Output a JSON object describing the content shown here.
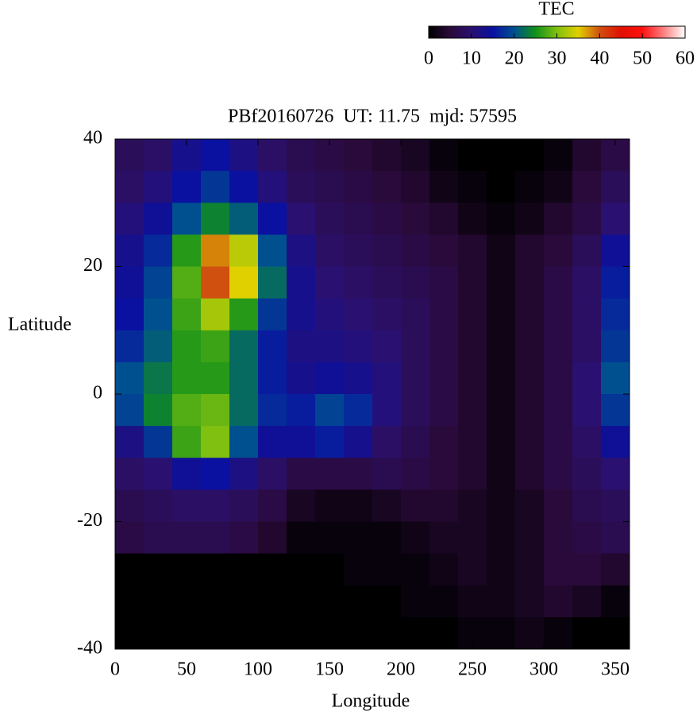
{
  "chart_data": {
    "type": "heatmap",
    "title": "PBf20160726  UT: 11.75  mjd: 57595",
    "xlabel": "Longitude",
    "ylabel": "Latitude",
    "colorbar_label": "TEC",
    "x": [
      10,
      30,
      50,
      70,
      90,
      110,
      130,
      150,
      170,
      190,
      210,
      230,
      250,
      270,
      290,
      310,
      330,
      350
    ],
    "y": [
      37.5,
      32.5,
      27.5,
      22.5,
      17.5,
      12.5,
      7.5,
      2.5,
      -2.5,
      -7.5,
      -12.5,
      -17.5,
      -22.5,
      -27.5,
      -32.5,
      -37.5
    ],
    "z": [
      [
        8,
        9,
        13,
        15,
        12,
        9,
        7,
        6,
        5,
        4,
        3,
        1,
        0,
        0,
        0,
        1,
        4,
        6
      ],
      [
        9,
        11,
        15,
        18,
        15,
        11,
        8,
        7,
        6,
        5,
        4,
        2,
        1,
        0,
        1,
        2,
        5,
        8
      ],
      [
        11,
        14,
        20,
        24,
        21,
        15,
        10,
        8,
        7,
        6,
        5,
        4,
        2,
        1,
        2,
        4,
        6,
        10
      ],
      [
        13,
        17,
        26,
        38,
        33,
        20,
        12,
        9,
        8,
        7,
        6,
        5,
        4,
        2,
        4,
        5,
        8,
        14
      ],
      [
        14,
        19,
        28,
        40,
        35,
        22,
        13,
        10,
        9,
        8,
        7,
        6,
        4,
        2,
        4,
        6,
        9,
        16
      ],
      [
        15,
        20,
        27,
        32,
        26,
        18,
        13,
        11,
        10,
        9,
        8,
        6,
        4,
        2,
        4,
        6,
        9,
        17
      ],
      [
        17,
        21,
        26,
        27,
        22,
        16,
        12,
        12,
        11,
        10,
        8,
        6,
        4,
        2,
        4,
        6,
        9,
        18
      ],
      [
        20,
        23,
        26,
        26,
        22,
        16,
        13,
        14,
        13,
        11,
        8,
        6,
        4,
        2,
        4,
        6,
        10,
        20
      ],
      [
        19,
        24,
        28,
        29,
        22,
        17,
        16,
        19,
        17,
        11,
        8,
        6,
        4,
        2,
        4,
        6,
        10,
        18
      ],
      [
        12,
        18,
        27,
        30,
        20,
        14,
        14,
        16,
        13,
        9,
        7,
        5,
        4,
        2,
        4,
        6,
        9,
        14
      ],
      [
        9,
        10,
        14,
        15,
        12,
        9,
        6,
        6,
        6,
        7,
        6,
        5,
        4,
        2,
        4,
        6,
        8,
        10
      ],
      [
        7,
        8,
        9,
        9,
        8,
        6,
        3,
        2,
        2,
        3,
        4,
        4,
        3,
        2,
        3,
        5,
        7,
        8
      ],
      [
        6,
        7,
        7,
        7,
        6,
        4,
        1,
        1,
        1,
        1,
        2,
        3,
        3,
        2,
        3,
        5,
        6,
        7
      ],
      [
        0,
        0,
        0,
        0,
        0,
        0,
        0,
        0,
        1,
        1,
        1,
        2,
        3,
        2,
        3,
        5,
        5,
        4
      ],
      [
        0,
        0,
        0,
        0,
        0,
        0,
        0,
        0,
        0,
        0,
        1,
        1,
        2,
        2,
        3,
        4,
        3,
        1
      ],
      [
        0,
        0,
        0,
        0,
        0,
        0,
        0,
        0,
        0,
        0,
        0,
        0,
        1,
        1,
        2,
        1,
        0,
        0
      ]
    ],
    "xlim": [
      0,
      360
    ],
    "ylim": [
      -40,
      40
    ],
    "xticks": [
      0,
      50,
      100,
      150,
      200,
      250,
      300,
      350
    ],
    "yticks": [
      -40,
      -20,
      0,
      20,
      40
    ],
    "clim": [
      0,
      60
    ],
    "cticks": [
      0,
      10,
      20,
      30,
      40,
      50,
      60
    ],
    "colormap": [
      "#000000",
      "#2a0a3a",
      "#2a1070",
      "#0a10a0",
      "#005090",
      "#10901a",
      "#80c010",
      "#e0d000",
      "#d05010",
      "#e01000",
      "#ff1010",
      "#ff8080",
      "#ffffff"
    ]
  }
}
